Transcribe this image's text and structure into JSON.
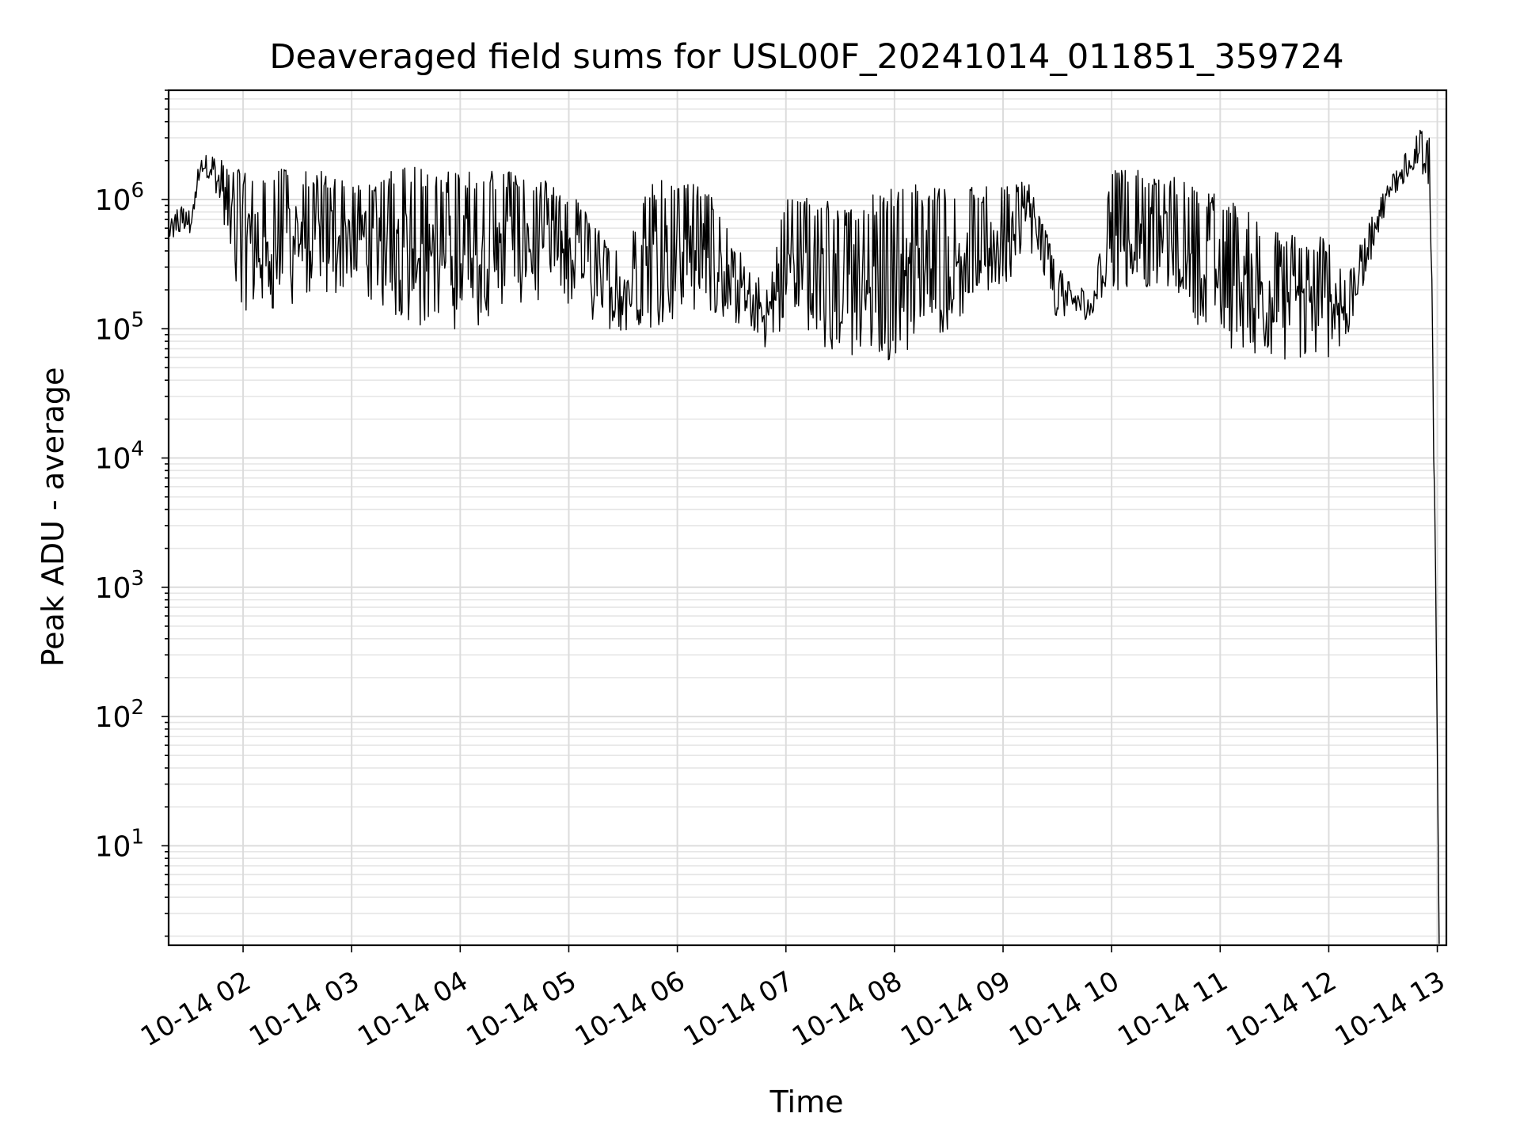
{
  "chart_data": {
    "type": "line",
    "title": "Deaveraged field sums for USL00F_20241014_011851_359724",
    "xlabel": "Time",
    "ylabel": "Peak ADU - average",
    "yscale": "log",
    "ylim": [
      1.7,
      7000000
    ],
    "xlim": [
      "2024-10-14 01:18:51",
      "2024-10-14 13:05:00"
    ],
    "grid": true,
    "line_color": "#000000",
    "x_ticks": [
      {
        "value": "2024-10-14 02:00",
        "label": "10-14 02"
      },
      {
        "value": "2024-10-14 03:00",
        "label": "10-14 03"
      },
      {
        "value": "2024-10-14 04:00",
        "label": "10-14 04"
      },
      {
        "value": "2024-10-14 05:00",
        "label": "10-14 05"
      },
      {
        "value": "2024-10-14 06:00",
        "label": "10-14 06"
      },
      {
        "value": "2024-10-14 07:00",
        "label": "10-14 07"
      },
      {
        "value": "2024-10-14 08:00",
        "label": "10-14 08"
      },
      {
        "value": "2024-10-14 09:00",
        "label": "10-14 09"
      },
      {
        "value": "2024-10-14 10:00",
        "label": "10-14 10"
      },
      {
        "value": "2024-10-14 11:00",
        "label": "10-14 11"
      },
      {
        "value": "2024-10-14 12:00",
        "label": "10-14 12"
      },
      {
        "value": "2024-10-14 13:00",
        "label": "10-14 13"
      }
    ],
    "y_ticks": [
      {
        "value": 10,
        "base": "10",
        "exp": "1"
      },
      {
        "value": 100,
        "base": "10",
        "exp": "2"
      },
      {
        "value": 1000,
        "base": "10",
        "exp": "3"
      },
      {
        "value": 10000,
        "base": "10",
        "exp": "4"
      },
      {
        "value": 100000,
        "base": "10",
        "exp": "5"
      },
      {
        "value": 1000000,
        "base": "10",
        "exp": "6"
      }
    ],
    "series": [
      {
        "envelope": [
          {
            "t": "2024-10-14 01:19",
            "high": 700000,
            "low": 450000
          },
          {
            "t": "2024-10-14 01:25",
            "high": 900000,
            "low": 500000
          },
          {
            "t": "2024-10-14 01:32",
            "high": 800000,
            "low": 550000
          },
          {
            "t": "2024-10-14 01:36",
            "high": 2300000,
            "low": 1500000
          },
          {
            "t": "2024-10-14 01:43",
            "high": 2200000,
            "low": 1400000
          },
          {
            "t": "2024-10-14 02:00",
            "high": 1800000,
            "low": 120000
          },
          {
            "t": "2024-10-14 02:30",
            "high": 1900000,
            "low": 150000
          },
          {
            "t": "2024-10-14 03:00",
            "high": 1400000,
            "low": 200000
          },
          {
            "t": "2024-10-14 03:30",
            "high": 1800000,
            "low": 110000
          },
          {
            "t": "2024-10-14 04:00",
            "high": 1700000,
            "low": 90000
          },
          {
            "t": "2024-10-14 04:30",
            "high": 1700000,
            "low": 150000
          },
          {
            "t": "2024-10-14 05:00",
            "high": 1200000,
            "low": 140000
          },
          {
            "t": "2024-10-14 05:30",
            "high": 350000,
            "low": 90000
          },
          {
            "t": "2024-10-14 05:45",
            "high": 1400000,
            "low": 100000
          },
          {
            "t": "2024-10-14 06:15",
            "high": 1400000,
            "low": 150000
          },
          {
            "t": "2024-10-14 06:30",
            "high": 500000,
            "low": 100000
          },
          {
            "t": "2024-10-14 06:50",
            "high": 200000,
            "low": 70000
          },
          {
            "t": "2024-10-14 07:00",
            "high": 1300000,
            "low": 100000
          },
          {
            "t": "2024-10-14 07:30",
            "high": 900000,
            "low": 60000
          },
          {
            "t": "2024-10-14 08:00",
            "high": 1300000,
            "low": 55000
          },
          {
            "t": "2024-10-14 08:30",
            "high": 1300000,
            "low": 100000
          },
          {
            "t": "2024-10-14 09:00",
            "high": 1300000,
            "low": 200000
          },
          {
            "t": "2024-10-14 09:15",
            "high": 1400000,
            "low": 400000
          },
          {
            "t": "2024-10-14 09:30",
            "high": 300000,
            "low": 110000
          },
          {
            "t": "2024-10-14 09:50",
            "high": 180000,
            "low": 120000
          },
          {
            "t": "2024-10-14 10:00",
            "high": 1800000,
            "low": 200000
          },
          {
            "t": "2024-10-14 10:30",
            "high": 1600000,
            "low": 200000
          },
          {
            "t": "2024-10-14 11:00",
            "high": 1100000,
            "low": 70000
          },
          {
            "t": "2024-10-14 11:30",
            "high": 600000,
            "low": 55000
          },
          {
            "t": "2024-10-14 12:00",
            "high": 500000,
            "low": 60000
          },
          {
            "t": "2024-10-14 12:10",
            "high": 250000,
            "low": 80000
          },
          {
            "t": "2024-10-14 12:30",
            "high": 1200000,
            "low": 700000
          },
          {
            "t": "2024-10-14 12:50",
            "high": 3500000,
            "low": 2000000
          },
          {
            "t": "2024-10-14 12:56",
            "high": 3000000,
            "low": 700000
          },
          {
            "t": "2024-10-14 12:59",
            "high": 1500,
            "low": 700
          },
          {
            "t": "2024-10-14 13:01",
            "high": 2,
            "low": 1.7
          }
        ]
      }
    ]
  }
}
